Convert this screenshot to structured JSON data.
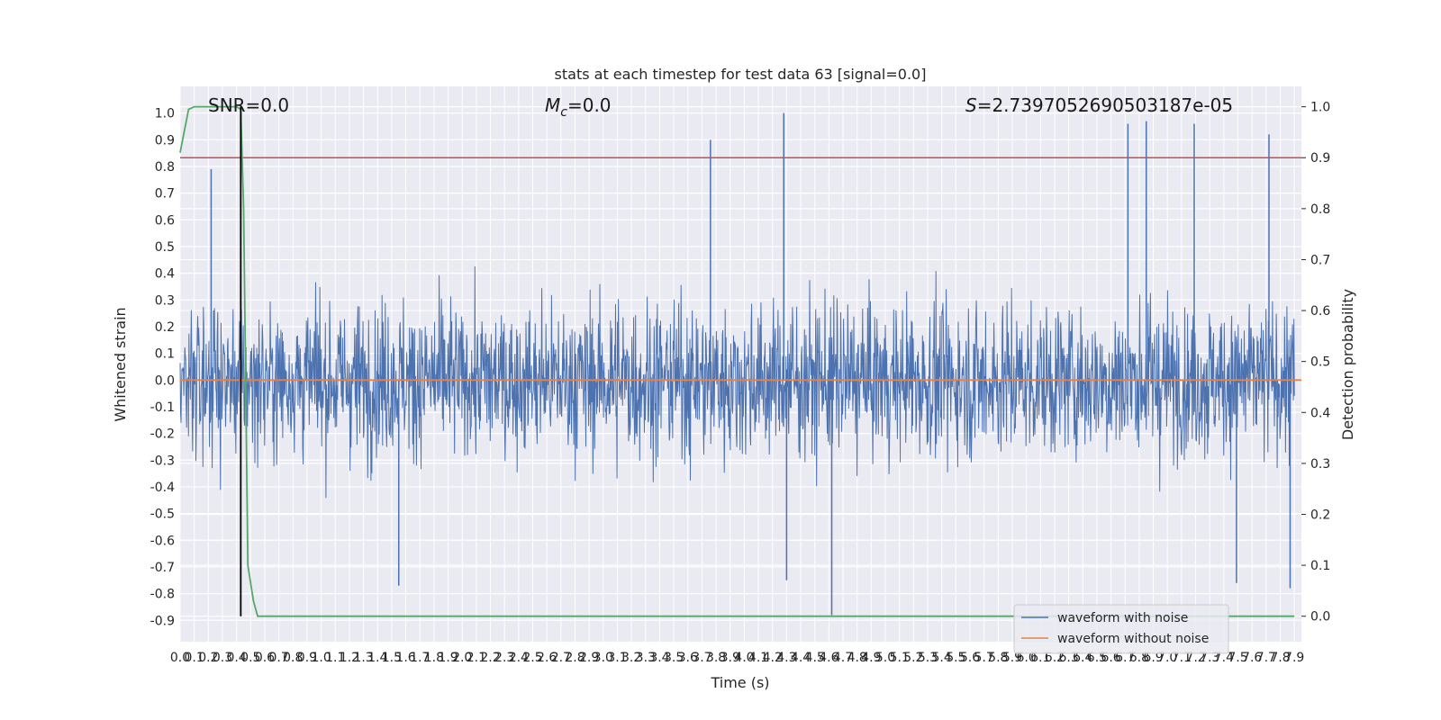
{
  "chart_data": {
    "type": "line",
    "title": "stats at each timestep for test data 63 [signal=0.0]",
    "xlabel": "Time (s)",
    "ylabel": "Whitened strain",
    "y2label": "Detection probability",
    "xlim": [
      0.0,
      7.95
    ],
    "ylim": [
      -0.98,
      1.1
    ],
    "y2lim": [
      -0.05,
      1.04
    ],
    "x_ticks": [
      0.0,
      0.1,
      0.2,
      0.3,
      0.4,
      0.5,
      0.6,
      0.7,
      0.8,
      0.9,
      1.0,
      1.1,
      1.2,
      1.3,
      1.4,
      1.5,
      1.6,
      1.7,
      1.8,
      1.9,
      2.0,
      2.1,
      2.2,
      2.3,
      2.4,
      2.5,
      2.6,
      2.7,
      2.8,
      2.9,
      3.0,
      3.1,
      3.2,
      3.3,
      3.4,
      3.5,
      3.6,
      3.7,
      3.8,
      3.9,
      4.0,
      4.1,
      4.2,
      4.3,
      4.4,
      4.5,
      4.6,
      4.7,
      4.8,
      4.9,
      5.0,
      5.1,
      5.2,
      5.3,
      5.4,
      5.5,
      5.6,
      5.7,
      5.8,
      5.9,
      6.0,
      6.1,
      6.2,
      6.3,
      6.4,
      6.5,
      6.6,
      6.7,
      6.8,
      6.9,
      7.0,
      7.1,
      7.2,
      7.3,
      7.4,
      7.5,
      7.6,
      7.7,
      7.8,
      7.9
    ],
    "y_ticks": [
      1.0,
      0.9,
      0.8,
      0.7,
      0.6,
      0.5,
      0.4,
      0.3,
      0.2,
      0.1,
      0.0,
      -0.1,
      -0.2,
      -0.3,
      -0.4,
      -0.5,
      -0.6,
      -0.7,
      -0.8,
      -0.9
    ],
    "y2_ticks": [
      1.0,
      0.9,
      0.8,
      0.7,
      0.6,
      0.5,
      0.4,
      0.3,
      0.2,
      0.1,
      0.0
    ],
    "annotations": {
      "snr": "SNR=0.0",
      "mc": "M_c=0.0",
      "s": "S=2.7397052690503187e-05"
    },
    "threshold_probability": 0.9,
    "vertical_marker_x": 0.43,
    "legend_position": "lower-right",
    "grid": true,
    "series": [
      {
        "name": "waveform with noise",
        "color": "#4c72b0",
        "axis": "left",
        "description_points": "dense noise between about -0.6 and 0.5 with spikes",
        "spikes": [
          [
            0.22,
            0.79
          ],
          [
            3.76,
            0.9
          ],
          [
            4.28,
            1.0
          ],
          [
            6.72,
            0.96
          ],
          [
            6.85,
            0.97
          ],
          [
            7.19,
            0.96
          ],
          [
            7.72,
            0.92
          ],
          [
            4.62,
            -0.88
          ],
          [
            1.55,
            -0.77
          ],
          [
            7.87,
            -0.78
          ],
          [
            4.3,
            -0.75
          ],
          [
            7.49,
            -0.76
          ]
        ]
      },
      {
        "name": "waveform without noise",
        "color": "#dd8452",
        "axis": "left",
        "x": [
          0.0,
          7.95
        ],
        "y": [
          0.0,
          0.0
        ]
      },
      {
        "color": "#55a868",
        "axis": "right",
        "x": [
          0.0,
          0.06,
          0.1,
          0.2,
          0.3,
          0.4,
          0.43,
          0.45,
          0.48,
          0.52,
          0.55,
          0.6,
          1.0,
          2.0,
          3.0,
          4.0,
          5.0,
          6.0,
          7.0,
          7.9
        ],
        "y": [
          0.91,
          0.995,
          1.0,
          1.0,
          1.0,
          1.0,
          0.995,
          0.8,
          0.1,
          0.03,
          0.0,
          0.0,
          0.0,
          0.0,
          0.0,
          0.0,
          0.0,
          0.0,
          0.0,
          0.0
        ]
      }
    ],
    "colors": {
      "background": "#eaeaf2",
      "grid": "#ffffff",
      "threshold": "#c44e52",
      "marker": "#000000"
    }
  }
}
